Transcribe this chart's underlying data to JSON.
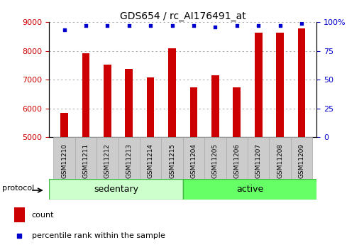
{
  "title": "GDS654 / rc_AI176491_at",
  "samples": [
    "GSM11210",
    "GSM11211",
    "GSM11212",
    "GSM11213",
    "GSM11214",
    "GSM11215",
    "GSM11204",
    "GSM11205",
    "GSM11206",
    "GSM11207",
    "GSM11208",
    "GSM11209"
  ],
  "counts": [
    5850,
    7920,
    7520,
    7380,
    7080,
    8100,
    6720,
    7160,
    6720,
    8640,
    8620,
    8780
  ],
  "percentile_ranks": [
    93,
    97,
    97,
    97,
    97,
    97,
    97,
    96,
    97,
    97,
    97,
    99
  ],
  "groups": [
    {
      "name": "sedentary",
      "color": "#ccffcc",
      "edge_color": "#44bb44",
      "n": 6
    },
    {
      "name": "active",
      "color": "#66ff66",
      "edge_color": "#44bb44",
      "n": 6
    }
  ],
  "protocol_label": "protocol",
  "ylim_left": [
    5000,
    9000
  ],
  "ylim_right": [
    0,
    100
  ],
  "yticks_left": [
    5000,
    6000,
    7000,
    8000,
    9000
  ],
  "yticks_right": [
    0,
    25,
    50,
    75,
    100
  ],
  "bar_color": "#cc0000",
  "dot_color": "#0000cc",
  "bar_bottom": 5000,
  "grid_color": "#aaaaaa",
  "bg_color": "#ffffff",
  "tick_label_color_left": "#cc0000",
  "tick_label_color_right": "#0000cc",
  "legend_count_label": "count",
  "legend_pct_label": "percentile rank within the sample",
  "xtick_bg_color": "#cccccc",
  "xtick_edge_color": "#aaaaaa"
}
